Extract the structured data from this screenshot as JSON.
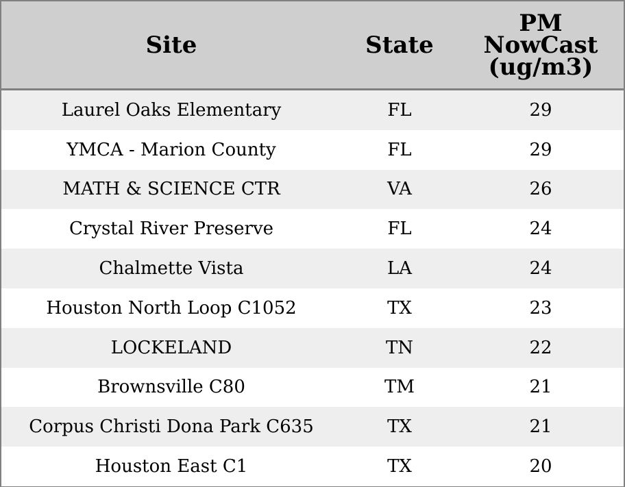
{
  "chart_data": {
    "type": "table",
    "columns": [
      "Site",
      "State",
      "PM\nNowCast\n(ug/m3)"
    ],
    "rows": [
      [
        "Laurel Oaks Elementary",
        "FL",
        "29"
      ],
      [
        "YMCA - Marion County",
        "FL",
        "29"
      ],
      [
        "MATH & SCIENCE CTR",
        "VA",
        "26"
      ],
      [
        "Crystal River Preserve",
        "FL",
        "24"
      ],
      [
        "Chalmette Vista",
        "LA",
        "24"
      ],
      [
        "Houston North Loop C1052",
        "TX",
        "23"
      ],
      [
        "LOCKELAND",
        "TN",
        "22"
      ],
      [
        "Brownsville C80",
        "TM",
        "21"
      ],
      [
        "Corpus Christi Dona Park C635",
        "TX",
        "21"
      ],
      [
        "Houston East C1",
        "TX",
        "20"
      ]
    ]
  },
  "colors": {
    "header_bg": "#cfcfcf",
    "row_alt_bg": "#eeeeee",
    "row_bg": "#ffffff",
    "border": "#808080"
  }
}
